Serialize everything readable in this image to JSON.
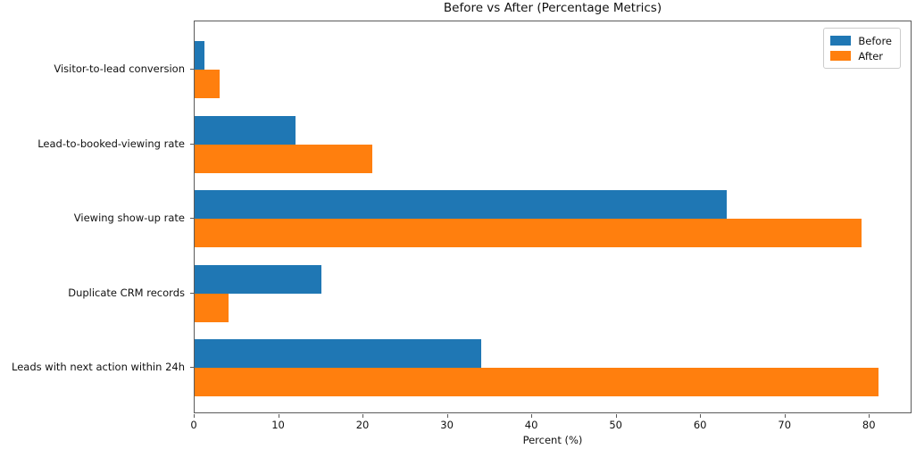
{
  "chart_data": {
    "type": "bar",
    "orientation": "horizontal",
    "title": "Before vs After (Percentage Metrics)",
    "xlabel": "Percent (%)",
    "categories": [
      "Visitor-to-lead conversion",
      "Lead-to-booked-viewing rate",
      "Viewing show-up rate",
      "Duplicate CRM records",
      "Leads with next action within 24h"
    ],
    "series": [
      {
        "name": "Before",
        "color": "#1f77b4",
        "values": [
          1.2,
          12,
          63,
          15,
          34
        ]
      },
      {
        "name": "After",
        "color": "#ff7f0e",
        "values": [
          3,
          21,
          79,
          4,
          81
        ]
      }
    ],
    "xticks": [
      0,
      10,
      20,
      30,
      40,
      50,
      60,
      70,
      80
    ],
    "xlim": [
      0,
      85.05
    ],
    "legend_position": "upper right",
    "grid": false
  }
}
